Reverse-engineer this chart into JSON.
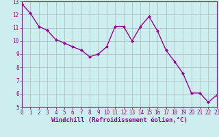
{
  "x": [
    0,
    1,
    2,
    3,
    4,
    5,
    6,
    7,
    8,
    9,
    10,
    11,
    12,
    13,
    14,
    15,
    16,
    17,
    18,
    19,
    20,
    21,
    22,
    23
  ],
  "y": [
    12.8,
    12.1,
    11.1,
    10.8,
    10.1,
    9.85,
    9.55,
    9.3,
    8.8,
    9.0,
    9.55,
    11.1,
    11.1,
    10.0,
    11.1,
    11.85,
    10.75,
    9.3,
    8.45,
    7.55,
    6.05,
    6.05,
    5.35,
    5.9
  ],
  "line_color": "#990099",
  "marker": "D",
  "marker_size": 2.0,
  "bg_color": "#cceeee",
  "grid_color": "#aabbbb",
  "xlabel": "Windchill (Refroidissement éolien,°C)",
  "xlabel_color": "#990099",
  "xlim": [
    0,
    23
  ],
  "ylim": [
    5,
    13
  ],
  "yticks": [
    5,
    6,
    7,
    8,
    9,
    10,
    11,
    12,
    13
  ],
  "xticks": [
    0,
    1,
    2,
    3,
    4,
    5,
    6,
    7,
    8,
    9,
    10,
    11,
    12,
    13,
    14,
    15,
    16,
    17,
    18,
    19,
    20,
    21,
    22,
    23
  ],
  "tick_color": "#990099",
  "tick_fontsize": 5.5,
  "xlabel_fontsize": 6.5,
  "spine_color": "#990099",
  "linewidth": 1.0
}
